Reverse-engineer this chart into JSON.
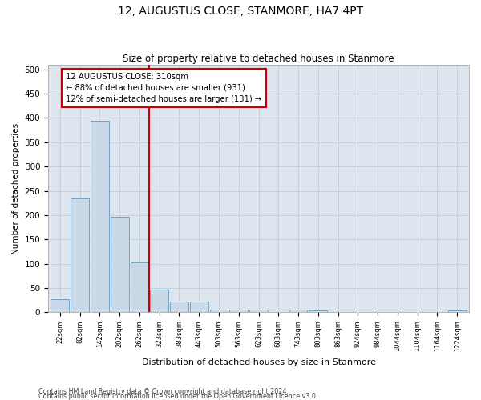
{
  "title": "12, AUGUSTUS CLOSE, STANMORE, HA7 4PT",
  "subtitle": "Size of property relative to detached houses in Stanmore",
  "xlabel": "Distribution of detached houses by size in Stanmore",
  "ylabel": "Number of detached properties",
  "bin_labels": [
    "22sqm",
    "82sqm",
    "142sqm",
    "202sqm",
    "262sqm",
    "323sqm",
    "383sqm",
    "443sqm",
    "503sqm",
    "563sqm",
    "623sqm",
    "683sqm",
    "743sqm",
    "803sqm",
    "863sqm",
    "924sqm",
    "984sqm",
    "1044sqm",
    "1104sqm",
    "1164sqm",
    "1224sqm"
  ],
  "bar_heights": [
    27,
    235,
    395,
    196,
    103,
    47,
    22,
    22,
    6,
    5,
    5,
    0,
    5,
    4,
    0,
    0,
    0,
    0,
    0,
    0,
    4
  ],
  "bar_color": "#c9d9e8",
  "bar_edge_color": "#6699bb",
  "grid_color": "#c0ccd8",
  "bg_color": "#dde5ef",
  "vline_color": "#cc0000",
  "annotation_text": "12 AUGUSTUS CLOSE: 310sqm\n← 88% of detached houses are smaller (931)\n12% of semi-detached houses are larger (131) →",
  "annotation_box_color": "#ffffff",
  "annotation_border_color": "#cc0000",
  "ylim": [
    0,
    510
  ],
  "yticks": [
    0,
    50,
    100,
    150,
    200,
    250,
    300,
    350,
    400,
    450,
    500
  ],
  "footer1": "Contains HM Land Registry data © Crown copyright and database right 2024.",
  "footer2": "Contains public sector information licensed under the Open Government Licence v3.0."
}
